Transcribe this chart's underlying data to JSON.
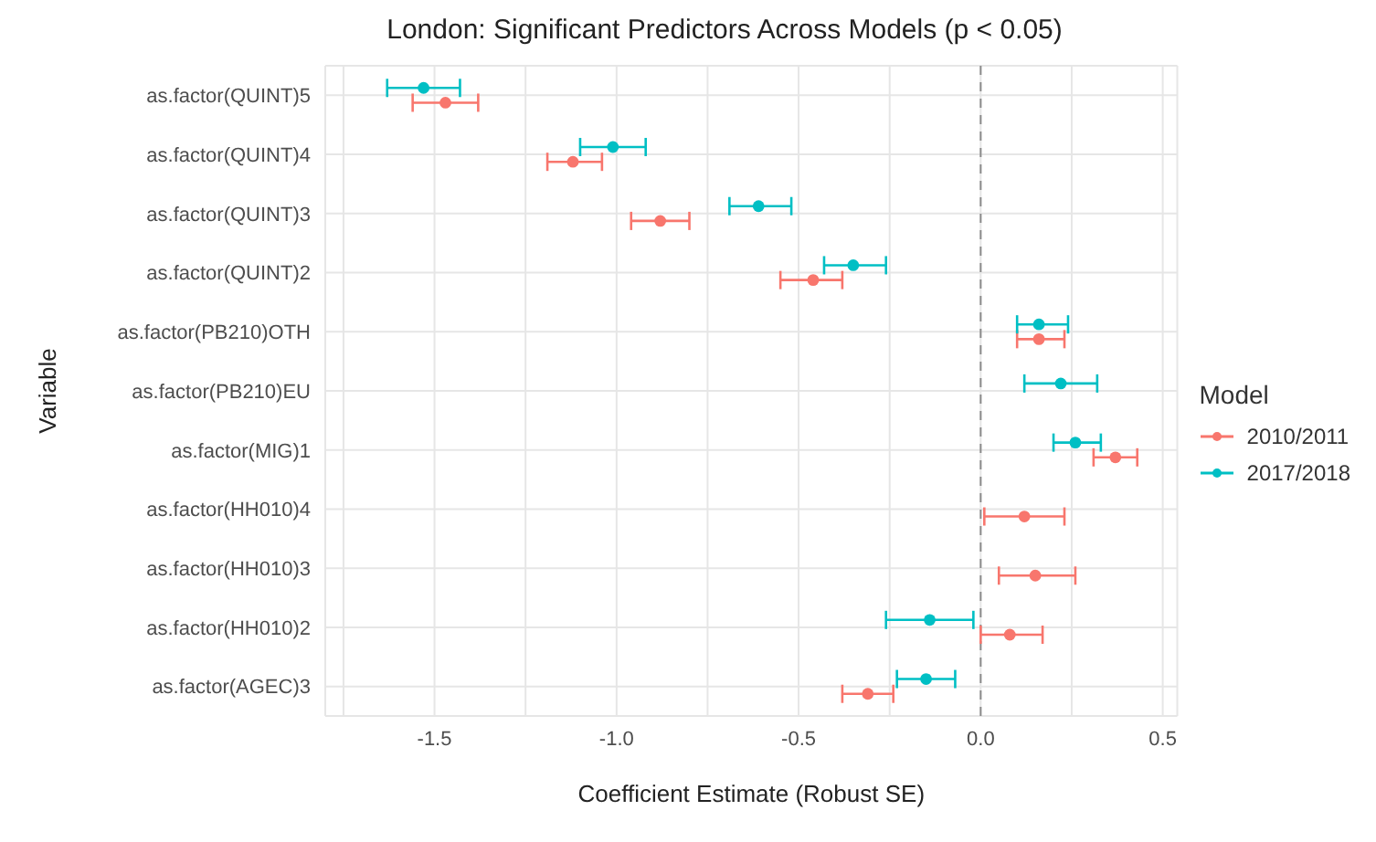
{
  "chart_data": {
    "type": "scatter",
    "orientation": "horizontal",
    "title": "London: Significant Predictors Across Models (p < 0.05)",
    "xlabel": "Coefficient Estimate (Robust SE)",
    "ylabel": "Variable",
    "legend_title": "Model",
    "legend": "right",
    "grid": true,
    "marker": "circle",
    "categories": [
      "as.factor(QUINT)5",
      "as.factor(QUINT)4",
      "as.factor(QUINT)3",
      "as.factor(QUINT)2",
      "as.factor(PB210)OTH",
      "as.factor(PB210)EU",
      "as.factor(MIG)1",
      "as.factor(HH010)4",
      "as.factor(HH010)3",
      "as.factor(HH010)2",
      "as.factor(AGEC)3"
    ],
    "xlim": [
      -1.8,
      0.54
    ],
    "xticks": [
      {
        "value": -1.75,
        "label": null
      },
      {
        "value": -1.5,
        "label": "-1.5"
      },
      {
        "value": -1.25,
        "label": null
      },
      {
        "value": -1,
        "label": "-1.0"
      },
      {
        "value": -0.75,
        "label": null
      },
      {
        "value": -0.5,
        "label": "-0.5"
      },
      {
        "value": -0.25,
        "label": null
      },
      {
        "value": 0,
        "label": "0.0"
      },
      {
        "value": 0.25,
        "label": null
      },
      {
        "value": 0.5,
        "label": "0.5"
      }
    ],
    "ref_lines": [
      {
        "axis": "x",
        "value": 0,
        "color": "#8c8c8c",
        "line_style": "dashed"
      }
    ],
    "series": [
      {
        "name": "2010/2011",
        "color": "#f8766d",
        "values": [
          -1.47,
          -1.12,
          -0.88,
          -0.46,
          0.16,
          null,
          0.37,
          0.12,
          0.15,
          0.08,
          -0.31
        ],
        "errors": [
          [
            -1.56,
            -1.38
          ],
          [
            -1.19,
            -1.04
          ],
          [
            -0.96,
            -0.8
          ],
          [
            -0.55,
            -0.38
          ],
          [
            0.1,
            0.23
          ],
          null,
          [
            0.31,
            0.43
          ],
          [
            0.01,
            0.23
          ],
          [
            0.05,
            0.26
          ],
          [
            0,
            0.17
          ],
          [
            -0.38,
            -0.24
          ]
        ]
      },
      {
        "name": "2017/2018",
        "color": "#00bfc4",
        "values": [
          -1.53,
          -1.01,
          -0.61,
          -0.35,
          0.16,
          0.22,
          0.26,
          null,
          null,
          -0.14,
          -0.15
        ],
        "errors": [
          [
            -1.63,
            -1.43
          ],
          [
            -1.1,
            -0.92
          ],
          [
            -0.69,
            -0.52
          ],
          [
            -0.43,
            -0.26
          ],
          [
            0.1,
            0.24
          ],
          [
            0.12,
            0.32
          ],
          [
            0.2,
            0.33
          ],
          null,
          null,
          [
            -0.26,
            -0.02
          ],
          [
            -0.23,
            -0.07
          ]
        ]
      }
    ]
  }
}
